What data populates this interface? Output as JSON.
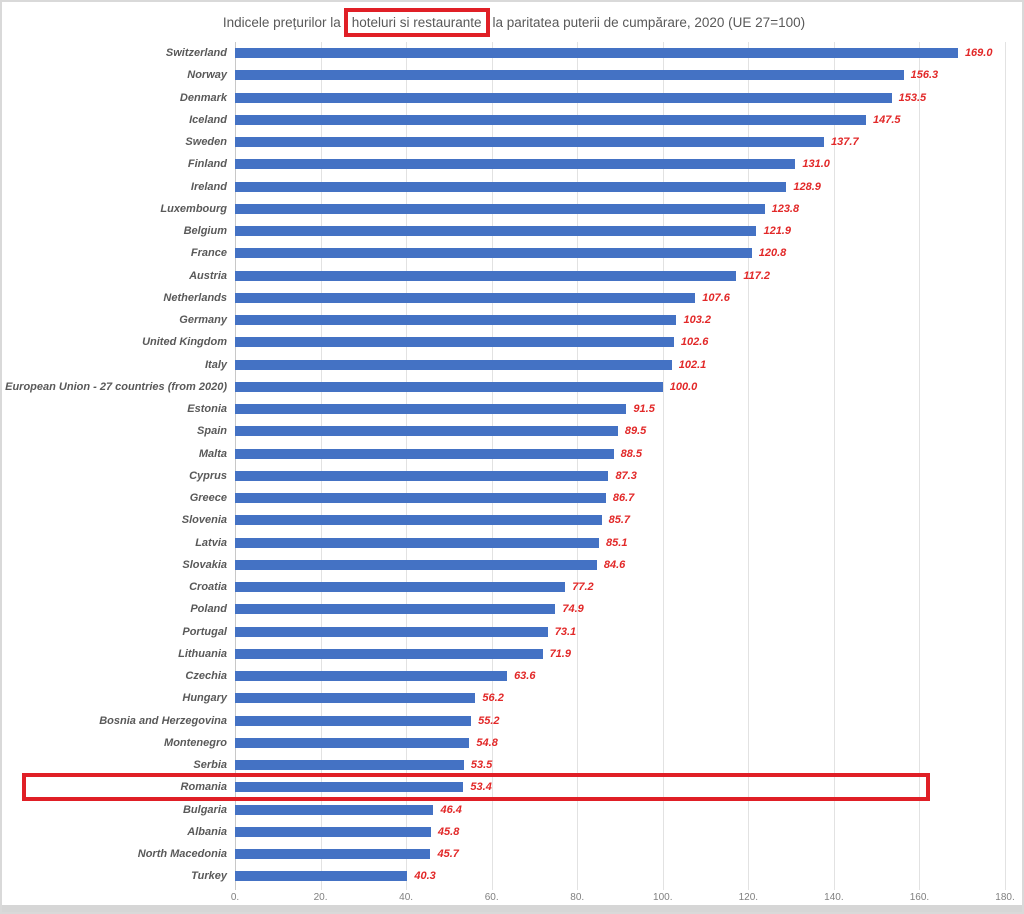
{
  "page": {
    "title_prefix": "Indicele prețurilor la",
    "title_highlight": "hoteluri si restaurante",
    "title_suffix": "la paritatea puterii de cumpărare, 2020 (UE 27=100)"
  },
  "chart_data": {
    "type": "bar",
    "orientation": "horizontal",
    "title": "Indicele prețurilor la hoteluri si restaurante la paritatea puterii de cumpărare, 2020 (UE 27=100)",
    "categories": [
      "Switzerland",
      "Norway",
      "Denmark",
      "Iceland",
      "Sweden",
      "Finland",
      "Ireland",
      "Luxembourg",
      "Belgium",
      "France",
      "Austria",
      "Netherlands",
      "Germany",
      "United Kingdom",
      "Italy",
      "European Union - 27 countries (from 2020)",
      "Estonia",
      "Spain",
      "Malta",
      "Cyprus",
      "Greece",
      "Slovenia",
      "Latvia",
      "Slovakia",
      "Croatia",
      "Poland",
      "Portugal",
      "Lithuania",
      "Czechia",
      "Hungary",
      "Bosnia and Herzegovina",
      "Montenegro",
      "Serbia",
      "Romania",
      "Bulgaria",
      "Albania",
      "North Macedonia",
      "Turkey"
    ],
    "values": [
      169.0,
      156.3,
      153.5,
      147.5,
      137.7,
      131.0,
      128.9,
      123.8,
      121.9,
      120.8,
      117.2,
      107.6,
      103.2,
      102.6,
      102.1,
      100.0,
      91.5,
      89.5,
      88.5,
      87.3,
      86.7,
      85.7,
      85.1,
      84.6,
      77.2,
      74.9,
      73.1,
      71.9,
      63.6,
      56.2,
      55.2,
      54.8,
      53.5,
      53.4,
      46.4,
      45.8,
      45.7,
      40.3
    ],
    "xlim": [
      0,
      180
    ],
    "x_tick_labels": [
      "0.",
      "20.",
      "40.",
      "60.",
      "80.",
      "100.",
      "120.",
      "140.",
      "160.",
      "180."
    ],
    "grid": true,
    "legend": "none",
    "highlight_country": "Romania",
    "highlighted_title_phrase": "hoteluri si restaurante",
    "colors": {
      "bar": "#4472c4",
      "value_label": "#e22828",
      "category_label": "#595959",
      "tick_label": "#808080",
      "gridline": "#e2e2e2",
      "axis_line": "#c8c8c8",
      "highlight_box": "#e01f26",
      "frame": "#d9d9d9"
    }
  }
}
